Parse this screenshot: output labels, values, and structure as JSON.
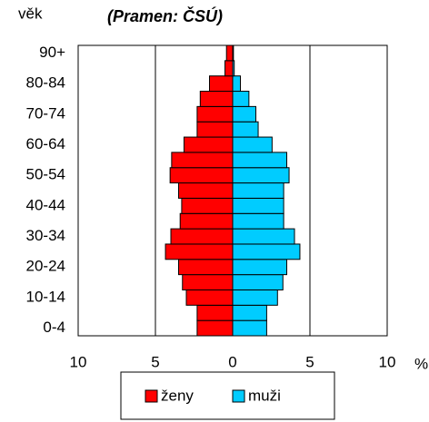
{
  "chart_data": {
    "type": "bar",
    "orientation": "horizontal",
    "y_label": "věk",
    "subtitle": "(Pramen: ČSÚ)",
    "x_unit": "%",
    "categories": [
      "0-4",
      null,
      "10-14",
      null,
      "20-24",
      null,
      "30-34",
      null,
      "40-44",
      null,
      "50-54",
      null,
      "60-64",
      null,
      "70-74",
      null,
      "80-84",
      null,
      "90+"
    ],
    "series": [
      {
        "name": "ženy",
        "color": "#ff0000",
        "values": [
          -2.3,
          -2.3,
          -3.0,
          -3.25,
          -3.5,
          -4.35,
          -4.0,
          -3.4,
          -3.3,
          -3.5,
          -4.05,
          -3.95,
          -3.15,
          -2.3,
          -2.3,
          -2.1,
          -1.5,
          -0.5,
          -0.4
        ]
      },
      {
        "name": "muži",
        "color": "#00ccff",
        "values": [
          2.2,
          2.2,
          2.9,
          3.25,
          3.5,
          4.35,
          4.0,
          3.3,
          3.3,
          3.3,
          3.65,
          3.5,
          2.55,
          1.65,
          1.5,
          1.05,
          0.5,
          0.1,
          0.05
        ]
      }
    ],
    "xlim": [
      -10,
      10
    ],
    "xticks": [
      {
        "value": -10,
        "label": "10"
      },
      {
        "value": -5,
        "label": "5"
      },
      0,
      5,
      10
    ],
    "grid": true
  }
}
